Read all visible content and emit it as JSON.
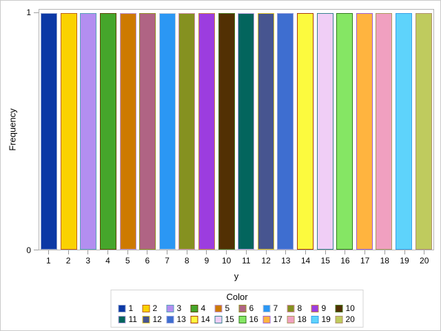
{
  "figure": {
    "background": "#FFFFFF",
    "outer_border_color": "#C9C9C9",
    "frame_color": "#B3B3B3",
    "tick_color": "#9B9B9B"
  },
  "chart_data": {
    "type": "bar",
    "title": "",
    "xlabel": "y",
    "ylabel": "Frequency",
    "ylim": [
      0,
      1
    ],
    "yticks": [
      "0",
      "1"
    ],
    "grid": false,
    "categories": [
      "1",
      "2",
      "3",
      "4",
      "5",
      "6",
      "7",
      "8",
      "9",
      "10",
      "11",
      "12",
      "13",
      "14",
      "15",
      "16",
      "17",
      "18",
      "19",
      "20"
    ],
    "values": [
      1,
      1,
      1,
      1,
      1,
      1,
      1,
      1,
      1,
      1,
      1,
      1,
      1,
      1,
      1,
      1,
      1,
      1,
      1,
      1
    ],
    "legend": {
      "title": "Color",
      "position": "bottom",
      "rows": 2,
      "border_color": "#D4D4D4"
    },
    "groups": [
      {
        "label": "1",
        "fill": "#0B38A5",
        "outline": "#94A6CF"
      },
      {
        "label": "2",
        "fill": "#FAD201",
        "outline": "#BE6014"
      },
      {
        "label": "3",
        "fill": "#B38EF0",
        "outline": "#57A2B7"
      },
      {
        "label": "4",
        "fill": "#45A62B",
        "outline": "#5F4708"
      },
      {
        "label": "5",
        "fill": "#CD7A00",
        "outline": "#BB96DF"
      },
      {
        "label": "6",
        "fill": "#B06484",
        "outline": "#8F9323"
      },
      {
        "label": "7",
        "fill": "#2B97F4",
        "outline": "#C2C9D6"
      },
      {
        "label": "8",
        "fill": "#859120",
        "outline": "#D191AC"
      },
      {
        "label": "9",
        "fill": "#9C3DDF",
        "outline": "#C5883E"
      },
      {
        "label": "10",
        "fill": "#523003",
        "outline": "#4E7B21"
      },
      {
        "label": "11",
        "fill": "#03655D",
        "outline": "#C6ABE9"
      },
      {
        "label": "12",
        "fill": "#475590",
        "outline": "#E5C82B"
      },
      {
        "label": "13",
        "fill": "#3E6ED0",
        "outline": "#98A0DC"
      },
      {
        "label": "14",
        "fill": "#FCFA3E",
        "outline": "#A93A0B"
      },
      {
        "label": "15",
        "fill": "#F0CEF6",
        "outline": "#35808D"
      },
      {
        "label": "16",
        "fill": "#85E664",
        "outline": "#33791F"
      },
      {
        "label": "17",
        "fill": "#FFB43F",
        "outline": "#9C60D8"
      },
      {
        "label": "18",
        "fill": "#F0A0C0",
        "outline": "#AB9A5C"
      },
      {
        "label": "19",
        "fill": "#5ED3FB",
        "outline": "#39A0E8"
      },
      {
        "label": "20",
        "fill": "#BFCB5E",
        "outline": "#B29070"
      }
    ]
  }
}
